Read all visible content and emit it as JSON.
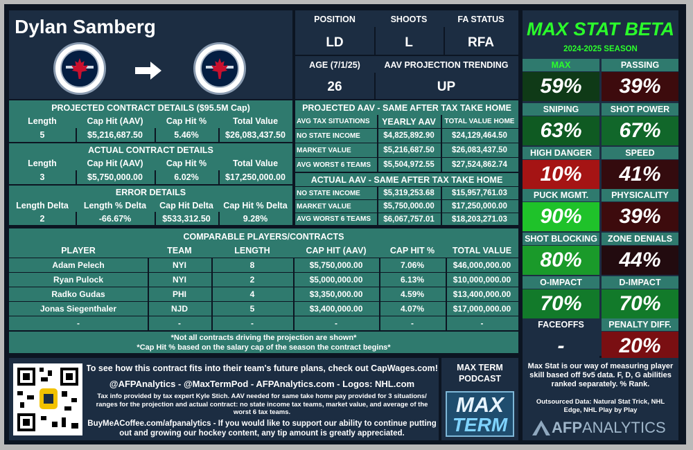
{
  "player": {
    "name": "Dylan Samberg"
  },
  "colors": {
    "bg": "#0c1522",
    "navy": "#1c2d42",
    "teal": "#2f7a6e",
    "title_green": "#2bff2b"
  },
  "info": {
    "position_label": "POSITION",
    "position": "LD",
    "shoots_label": "SHOOTS",
    "shoots": "L",
    "fa_label": "FA STATUS",
    "fa": "RFA",
    "age_label": "AGE (7/1/25)",
    "age": "26",
    "trend_label": "AAV PROJECTION TRENDING",
    "trend": "UP"
  },
  "projected": {
    "title": "PROJECTED CONTRACT DETAILS ($95.5M Cap)",
    "headers": [
      "Length",
      "Cap Hit (AAV)",
      "Cap Hit %",
      "Total Value"
    ],
    "values": [
      "5",
      "$5,216,687.50",
      "5.46%",
      "$26,083,437.50"
    ]
  },
  "actual": {
    "title": "ACTUAL CONTRACT DETAILS",
    "headers": [
      "Length",
      "Cap Hit (AAV)",
      "Cap Hit %",
      "Total Value"
    ],
    "values": [
      "3",
      "$5,750,000.00",
      "6.02%",
      "$17,250,000.00"
    ]
  },
  "error": {
    "title": "ERROR DETAILS",
    "headers": [
      "Length Delta",
      "Length % Delta",
      "Cap Hit Delta",
      "Cap Hit % Delta"
    ],
    "values": [
      "2",
      "-66.67%",
      "$533,312.50",
      "9.28%"
    ]
  },
  "tax_proj": {
    "title": "PROJECTED AAV - SAME AFTER TAX TAKE HOME",
    "headers": [
      "AVG TAX SITUATIONS",
      "YEARLY AAV",
      "TOTAL VALUE HOME"
    ],
    "rows": [
      [
        "NO STATE INCOME",
        "$4,825,892.90",
        "$24,129,464.50"
      ],
      [
        "MARKET VALUE",
        "$5,216,687.50",
        "$26,083,437.50"
      ],
      [
        "AVG WORST 6 TEAMS",
        "$5,504,972.55",
        "$27,524,862.74"
      ]
    ]
  },
  "tax_actual": {
    "title": "ACTUAL AAV - SAME AFTER TAX TAKE HOME",
    "rows": [
      [
        "NO STATE INCOME",
        "$5,319,253.68",
        "$15,957,761.03"
      ],
      [
        "MARKET VALUE",
        "$5,750,000.00",
        "$17,250,000.00"
      ],
      [
        "AVG WORST 6 TEAMS",
        "$6,067,757.01",
        "$18,203,271.03"
      ]
    ]
  },
  "comparables": {
    "title": "COMPARABLE PLAYERS/CONTRACTS",
    "headers": [
      "PLAYER",
      "TEAM",
      "LENGTH",
      "CAP HIT (AAV)",
      "CAP HIT %",
      "TOTAL VALUE"
    ],
    "rows": [
      [
        "Adam Pelech",
        "NYI",
        "8",
        "$5,750,000.00",
        "7.06%",
        "$46,000,000.00"
      ],
      [
        "Ryan Pulock",
        "NYI",
        "2",
        "$5,000,000.00",
        "6.13%",
        "$10,000,000.00"
      ],
      [
        "Radko Gudas",
        "PHI",
        "4",
        "$3,350,000.00",
        "4.59%",
        "$13,400,000.00"
      ],
      [
        "Jonas Siegenthaler",
        "NJD",
        "5",
        "$3,400,000.00",
        "4.07%",
        "$17,000,000.00"
      ],
      [
        "-",
        "-",
        "-",
        "-",
        "-",
        "-"
      ]
    ],
    "note1": "*Not all contracts driving the projection are shown*",
    "note2": "*Cap Hit % based on the salary cap of the season the contract begins*"
  },
  "maxstat": {
    "title": "MAX STAT BETA",
    "season": "2024-2025 SEASON",
    "stats": [
      {
        "label": "MAX",
        "value": "59%",
        "color": "#0f3a17"
      },
      {
        "label": "PASSING",
        "value": "39%",
        "color": "#3d0b0d"
      },
      {
        "label": "SNIPING",
        "value": "63%",
        "color": "#0f5a22"
      },
      {
        "label": "SHOT POWER",
        "value": "67%",
        "color": "#11672a"
      },
      {
        "label": "HIGH DANGER",
        "value": "10%",
        "color": "#a51414"
      },
      {
        "label": "SPEED",
        "value": "41%",
        "color": "#340b0e"
      },
      {
        "label": "PUCK MGMT.",
        "value": "90%",
        "color": "#1fc22a"
      },
      {
        "label": "PHYSICALITY",
        "value": "39%",
        "color": "#3d0b0d"
      },
      {
        "label": "SHOT BLOCKING",
        "value": "80%",
        "color": "#1a9a2a"
      },
      {
        "label": "ZONE DENIALS",
        "value": "44%",
        "color": "#220b0f"
      },
      {
        "label": "O-IMPACT",
        "value": "70%",
        "color": "#127a2a"
      },
      {
        "label": "D-IMPACT",
        "value": "70%",
        "color": "#127a2a"
      },
      {
        "label": "FACEOFFS",
        "value": "-",
        "color": "#1c2d42"
      },
      {
        "label": "PENALTY DIFF.",
        "value": "20%",
        "color": "#7a0f12"
      }
    ]
  },
  "footer": {
    "line1": "To see how this contract fits into their team's future plans, check out CapWages.com!",
    "line2": "@AFPAnalytics - @MaxTermPod - AFPAnalytics.com - Logos: NHL.com",
    "line3": "Tax info provided by tax expert Kyle Stich. AAV needed for same take home pay provided for 3 situations/ ranges for the projection and actual contract: no state income tax teams, market value, and average of the worst 6 tax teams.",
    "line4": "BuyMeACoffee.com/afpanalytics - If you would like to support our ability to continue putting out and growing our hockey content, any tip amount is greatly appreciated.",
    "podcast": "MAX TERM PODCAST",
    "podcast_logo1": "MAX",
    "podcast_logo2": "TERM",
    "maxstat_desc": "Max Stat is our way of measuring player skill based off 5v5 data. F, D, G abilities ranked separately. % Rank.",
    "outsourced": "Outsourced Data: Natural Stat Trick, NHL Edge, NHL Play by Play",
    "brand1": "AFP",
    "brand2": "ANALYTICS"
  }
}
